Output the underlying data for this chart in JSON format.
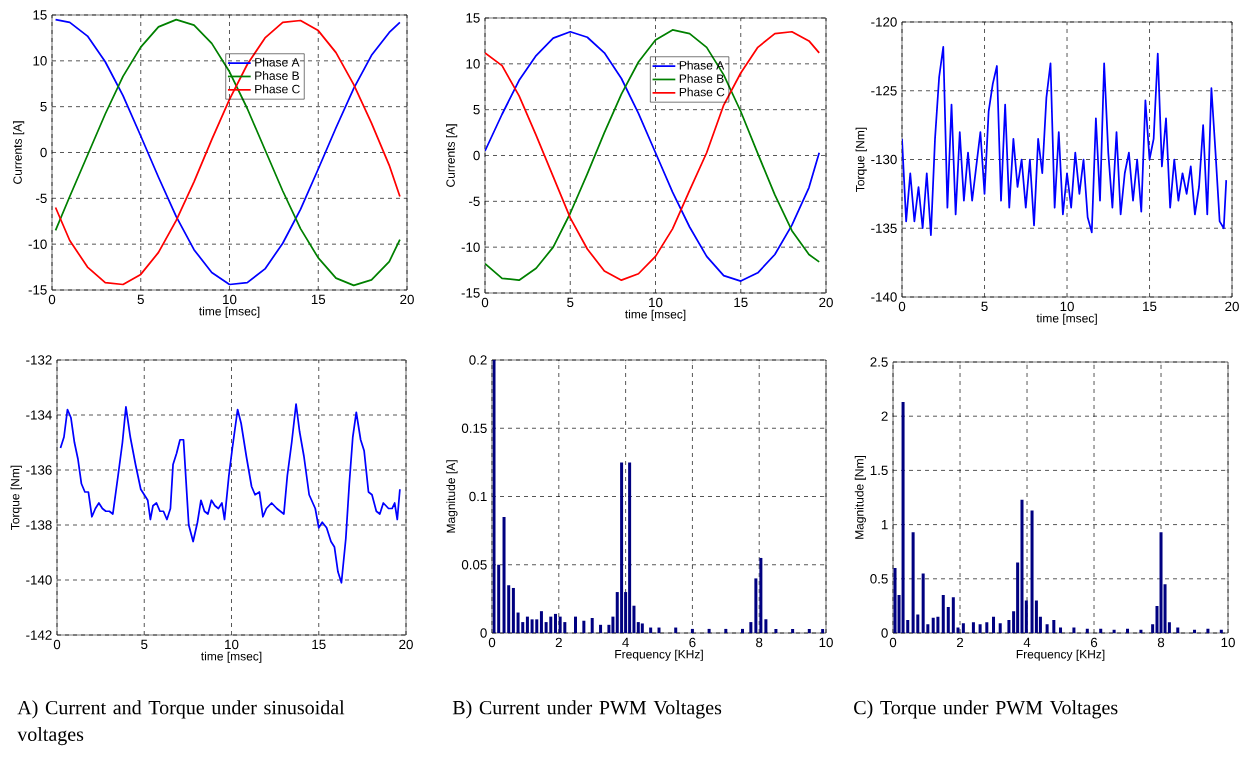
{
  "chart_data": [
    {
      "type": "line",
      "xlabel": "time [msec]",
      "ylabel": "Currents [A]",
      "xlim": [
        0,
        20
      ],
      "ylim": [
        -15,
        15
      ],
      "xticks": [
        0,
        5,
        10,
        15,
        20
      ],
      "yticks": [
        -15,
        -10,
        -5,
        0,
        5,
        10,
        15
      ],
      "grid": true,
      "legend": "top",
      "x": [
        0.2,
        1,
        2,
        3,
        4,
        5,
        6,
        7,
        8,
        9,
        10,
        11,
        12,
        13,
        14,
        15,
        16,
        17,
        18,
        19,
        19.6
      ],
      "series": [
        {
          "name": "Phase A",
          "color": "#0000ff",
          "values": [
            14.5,
            14.2,
            12.7,
            9.9,
            6.2,
            1.8,
            -2.7,
            -7.0,
            -10.6,
            -13.1,
            -14.4,
            -14.2,
            -12.7,
            -9.9,
            -6.2,
            -1.8,
            2.7,
            7.0,
            10.6,
            13.1,
            14.2
          ]
        },
        {
          "name": "Phase B",
          "color": "#008000",
          "values": [
            -8.5,
            -4.8,
            -0.3,
            4.2,
            8.3,
            11.5,
            13.7,
            14.5,
            13.9,
            11.9,
            8.8,
            4.8,
            0.3,
            -4.2,
            -8.3,
            -11.5,
            -13.7,
            -14.5,
            -13.9,
            -11.9,
            -9.5
          ]
        },
        {
          "name": "Phase C",
          "color": "#ff0000",
          "values": [
            -6.0,
            -9.6,
            -12.5,
            -14.2,
            -14.4,
            -13.3,
            -10.9,
            -7.4,
            -3.2,
            1.4,
            5.8,
            9.6,
            12.5,
            14.2,
            14.4,
            13.3,
            10.9,
            7.4,
            3.2,
            -1.4,
            -4.8
          ]
        }
      ]
    },
    {
      "type": "line",
      "xlabel": "time [msec]",
      "ylabel": "Currents [A]",
      "xlim": [
        0,
        20
      ],
      "ylim": [
        -15,
        15
      ],
      "xticks": [
        0,
        5,
        10,
        15,
        20
      ],
      "yticks": [
        -15,
        -10,
        -5,
        0,
        5,
        10,
        15
      ],
      "grid": true,
      "legend": "top",
      "x": [
        0,
        1,
        2,
        3,
        4,
        5,
        6,
        7,
        8,
        9,
        10,
        11,
        12,
        13,
        14,
        15,
        16,
        17,
        18,
        19,
        19.6
      ],
      "series": [
        {
          "name": "Phase A",
          "color": "#0000ff",
          "values": [
            0.5,
            4.5,
            8.2,
            10.9,
            12.8,
            13.5,
            12.9,
            11.2,
            8.4,
            4.6,
            0.3,
            -4.0,
            -7.8,
            -11.0,
            -13.1,
            -13.7,
            -12.8,
            -10.8,
            -7.6,
            -3.5,
            0.3
          ]
        },
        {
          "name": "Phase B",
          "color": "#008000",
          "values": [
            -11.8,
            -13.4,
            -13.6,
            -12.3,
            -10.0,
            -6.3,
            -2.0,
            2.5,
            6.7,
            10.2,
            12.6,
            13.7,
            13.3,
            11.8,
            8.8,
            4.8,
            0.2,
            -4.3,
            -8.2,
            -10.8,
            -11.6
          ]
        },
        {
          "name": "Phase C",
          "color": "#ff0000",
          "values": [
            11.2,
            9.8,
            6.5,
            2.2,
            -2.3,
            -6.8,
            -10.2,
            -12.6,
            -13.6,
            -12.9,
            -11.0,
            -8.0,
            -3.8,
            0.3,
            5.5,
            9.0,
            11.8,
            13.3,
            13.5,
            12.5,
            11.2
          ]
        }
      ]
    },
    {
      "type": "line",
      "xlabel": "time [msec]",
      "ylabel": "Torque [Nm]",
      "xlim": [
        0,
        20
      ],
      "ylim": [
        -140,
        -120
      ],
      "xticks": [
        0,
        5,
        10,
        15,
        20
      ],
      "yticks": [
        -140,
        -135,
        -130,
        -125,
        -120
      ],
      "grid": true,
      "x": [
        0,
        0.25,
        0.5,
        0.75,
        1,
        1.25,
        1.5,
        1.75,
        2,
        2.25,
        2.5,
        2.75,
        3,
        3.25,
        3.5,
        3.75,
        4,
        4.25,
        4.5,
        4.75,
        5,
        5.25,
        5.5,
        5.75,
        6,
        6.25,
        6.5,
        6.75,
        7,
        7.25,
        7.5,
        7.75,
        8,
        8.25,
        8.5,
        8.75,
        9,
        9.25,
        9.5,
        9.75,
        10,
        10.25,
        10.5,
        10.75,
        11,
        11.25,
        11.5,
        11.75,
        12,
        12.25,
        12.5,
        12.75,
        13,
        13.25,
        13.5,
        13.75,
        14,
        14.25,
        14.5,
        14.75,
        15,
        15.25,
        15.5,
        15.75,
        16,
        16.25,
        16.5,
        16.75,
        17,
        17.25,
        17.5,
        17.75,
        18,
        18.25,
        18.5,
        18.75,
        19,
        19.25,
        19.5,
        19.65
      ],
      "series": [
        {
          "color": "#0000ff",
          "values": [
            -128.5,
            -134.5,
            -131,
            -134.5,
            -132,
            -135,
            -131,
            -135.5,
            -128.5,
            -124,
            -121.8,
            -133.5,
            -126,
            -134,
            -128,
            -133,
            -129.5,
            -133,
            -130.5,
            -128,
            -132.5,
            -126.5,
            -124.5,
            -123.2,
            -133,
            -126,
            -133.5,
            -128.5,
            -132,
            -130,
            -133.5,
            -130,
            -134.8,
            -128.5,
            -131,
            -125.5,
            -123,
            -133.5,
            -128,
            -134,
            -131,
            -133.5,
            -129.5,
            -132.5,
            -130,
            -134.2,
            -135.3,
            -127,
            -133,
            -123,
            -129.5,
            -133.5,
            -128,
            -134,
            -131,
            -129.5,
            -133,
            -130,
            -133.8,
            -125.7,
            -130,
            -128.5,
            -122.3,
            -130.5,
            -127,
            -133.5,
            -130,
            -133,
            -131,
            -132.5,
            -130.5,
            -134,
            -132,
            -127.5,
            -134,
            -124.8,
            -129.5,
            -134.5,
            -135,
            -131.5
          ]
        }
      ]
    },
    {
      "type": "line",
      "xlabel": "time [msec]",
      "ylabel": "Torque [Nm]",
      "xlim": [
        0,
        20
      ],
      "ylim": [
        -142,
        -132
      ],
      "xticks": [
        0,
        5,
        10,
        15,
        20
      ],
      "yticks": [
        -142,
        -140,
        -138,
        -136,
        -134,
        -132
      ],
      "grid": true,
      "annotations": [
        "A) Current and Torque under sinusoidal voltages"
      ],
      "x": [
        0.2,
        0.4,
        0.6,
        0.8,
        1,
        1.2,
        1.4,
        1.6,
        1.8,
        2,
        2.2,
        2.4,
        2.6,
        2.8,
        3,
        3.2,
        3.5,
        3.75,
        3.95,
        4.2,
        4.5,
        4.8,
        5,
        5.2,
        5.35,
        5.5,
        5.7,
        5.9,
        6.1,
        6.3,
        6.5,
        6.65,
        6.85,
        7.05,
        7.25,
        7.55,
        7.8,
        8.05,
        8.25,
        8.45,
        8.65,
        8.85,
        9.05,
        9.25,
        9.45,
        9.6,
        9.85,
        10.05,
        10.35,
        10.55,
        10.85,
        11.15,
        11.35,
        11.6,
        11.8,
        12,
        12.3,
        12.6,
        13,
        13.2,
        13.45,
        13.7,
        13.9,
        14.15,
        14.45,
        14.8,
        15,
        15.2,
        15.45,
        15.7,
        15.9,
        16.1,
        16.3,
        16.55,
        16.75,
        16.95,
        17.15,
        17.4,
        17.6,
        17.85,
        18.05,
        18.3,
        18.5,
        18.7,
        19,
        19.2,
        19.35,
        19.5,
        19.65
      ],
      "series": [
        {
          "color": "#0000ff",
          "values": [
            -135.2,
            -134.8,
            -133.8,
            -134.1,
            -135,
            -135.6,
            -136.5,
            -136.8,
            -136.8,
            -137.7,
            -137.4,
            -137.2,
            -137.4,
            -137.5,
            -137.5,
            -137.6,
            -136.2,
            -135,
            -133.7,
            -134.8,
            -135.8,
            -136.7,
            -136.9,
            -137.1,
            -137.8,
            -137.3,
            -137.2,
            -137.5,
            -137.5,
            -137.8,
            -137.4,
            -135.8,
            -135.4,
            -134.9,
            -134.9,
            -138,
            -138.6,
            -137.9,
            -137.1,
            -137.5,
            -137.6,
            -137.1,
            -137.3,
            -137.4,
            -137.2,
            -137.8,
            -136.2,
            -135.2,
            -133.8,
            -134.3,
            -135.5,
            -136.6,
            -136.9,
            -136.8,
            -137.7,
            -137.4,
            -137.2,
            -137.4,
            -137.6,
            -136.2,
            -135,
            -133.6,
            -134.6,
            -135.5,
            -136.9,
            -137.4,
            -138.1,
            -137.9,
            -138.1,
            -138.6,
            -138.8,
            -139.7,
            -140.1,
            -138.5,
            -136.5,
            -134.8,
            -133.9,
            -134.9,
            -135.3,
            -136.8,
            -136.9,
            -137.5,
            -137.6,
            -137.2,
            -137.4,
            -137.4,
            -137.2,
            -137.8,
            -136.7
          ]
        }
      ]
    },
    {
      "type": "bar",
      "xlabel": "Frequency [KHz]",
      "ylabel": "Magnitude [A]",
      "xlim": [
        0,
        10
      ],
      "ylim": [
        0,
        0.2
      ],
      "xticks": [
        0,
        2,
        4,
        6,
        8,
        10
      ],
      "yticks": [
        0,
        0.05,
        0.1,
        0.15,
        0.2
      ],
      "grid": true,
      "color": "#000080",
      "annotations": [
        "B) Current under PWM Voltages"
      ],
      "x": [
        0.06,
        0.2,
        0.36,
        0.5,
        0.64,
        0.78,
        0.92,
        1.06,
        1.2,
        1.34,
        1.48,
        1.62,
        1.76,
        1.9,
        2.04,
        2.18,
        2.5,
        2.75,
        3.0,
        3.25,
        3.5,
        3.62,
        3.75,
        3.88,
        4.0,
        4.12,
        4.25,
        4.38,
        4.5,
        4.75,
        5.0,
        5.5,
        6.0,
        6.5,
        7.0,
        7.5,
        7.75,
        7.9,
        8.05,
        8.2,
        8.5,
        9.0,
        9.5,
        9.9
      ],
      "values": [
        0.2,
        0.05,
        0.085,
        0.035,
        0.033,
        0.015,
        0.008,
        0.012,
        0.01,
        0.01,
        0.016,
        0.008,
        0.012,
        0.014,
        0.012,
        0.008,
        0.012,
        0.009,
        0.011,
        0.006,
        0.006,
        0.012,
        0.03,
        0.125,
        0.03,
        0.125,
        0.02,
        0.008,
        0.007,
        0.004,
        0.004,
        0.004,
        0.003,
        0.003,
        0.003,
        0.003,
        0.008,
        0.04,
        0.055,
        0.01,
        0.003,
        0.003,
        0.003,
        0.003
      ]
    },
    {
      "type": "bar",
      "xlabel": "Frequency [KHz]",
      "ylabel": "Magnitude [Nm]",
      "xlim": [
        0,
        10
      ],
      "ylim": [
        0,
        2.5
      ],
      "xticks": [
        0,
        2,
        4,
        6,
        8,
        10
      ],
      "yticks": [
        0,
        0.5,
        1,
        1.5,
        2,
        2.5
      ],
      "grid": true,
      "color": "#000080",
      "annotations": [
        "C) Torque under PWM Voltages"
      ],
      "x": [
        0.06,
        0.18,
        0.3,
        0.44,
        0.6,
        0.74,
        0.9,
        1.04,
        1.2,
        1.34,
        1.5,
        1.65,
        1.8,
        1.94,
        2.1,
        2.4,
        2.6,
        2.8,
        3.0,
        3.2,
        3.46,
        3.6,
        3.72,
        3.85,
        3.98,
        4.15,
        4.28,
        4.4,
        4.6,
        4.8,
        5.0,
        5.4,
        5.8,
        6.2,
        6.6,
        7.0,
        7.4,
        7.75,
        7.88,
        8.0,
        8.12,
        8.25,
        8.5,
        9.0,
        9.4,
        9.8
      ],
      "values": [
        0.6,
        0.35,
        2.13,
        0.12,
        0.93,
        0.17,
        0.55,
        0.08,
        0.14,
        0.15,
        0.35,
        0.24,
        0.33,
        0.05,
        0.09,
        0.1,
        0.08,
        0.1,
        0.15,
        0.09,
        0.12,
        0.2,
        0.65,
        1.23,
        0.3,
        1.13,
        0.3,
        0.15,
        0.08,
        0.12,
        0.05,
        0.05,
        0.04,
        0.04,
        0.03,
        0.04,
        0.03,
        0.08,
        0.25,
        0.93,
        0.45,
        0.1,
        0.05,
        0.03,
        0.04,
        0.03
      ]
    }
  ]
}
